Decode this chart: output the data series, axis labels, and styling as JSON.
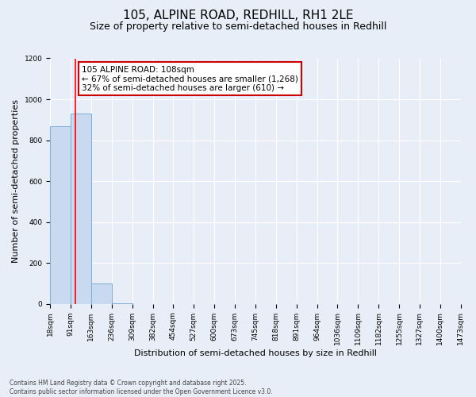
{
  "title1": "105, ALPINE ROAD, REDHILL, RH1 2LE",
  "title2": "Size of property relative to semi-detached houses in Redhill",
  "xlabel": "Distribution of semi-detached houses by size in Redhill",
  "ylabel": "Number of semi-detached properties",
  "bin_edges": [
    18,
    91,
    163,
    236,
    309,
    382,
    454,
    527,
    600,
    673,
    745,
    818,
    891,
    964,
    1036,
    1109,
    1182,
    1255,
    1327,
    1400,
    1473
  ],
  "bar_heights": [
    870,
    930,
    100,
    2,
    0,
    0,
    0,
    0,
    0,
    0,
    0,
    0,
    0,
    0,
    0,
    0,
    0,
    0,
    0,
    0
  ],
  "bar_color": "#c9d9ef",
  "bar_edgecolor": "#7bafd4",
  "red_line_x": 108,
  "annotation_line1": "105 ALPINE ROAD: 108sqm",
  "annotation_line2": "← 67% of semi-detached houses are smaller (1,268)",
  "annotation_line3": "32% of semi-detached houses are larger (610) →",
  "annotation_box_color": "#ffffff",
  "annotation_box_edgecolor": "#cc0000",
  "ylim": [
    0,
    1200
  ],
  "yticks": [
    0,
    200,
    400,
    600,
    800,
    1000,
    1200
  ],
  "footer_text": "Contains HM Land Registry data © Crown copyright and database right 2025.\nContains public sector information licensed under the Open Government Licence v3.0.",
  "bg_color": "#e8eef8",
  "plot_bg_color": "#e8eef8",
  "grid_color": "#ffffff",
  "title1_fontsize": 11,
  "title2_fontsize": 9,
  "tick_label_fontsize": 6.5,
  "ylabel_fontsize": 8,
  "xlabel_fontsize": 8,
  "annotation_fontsize": 7.5,
  "footer_fontsize": 5.5
}
